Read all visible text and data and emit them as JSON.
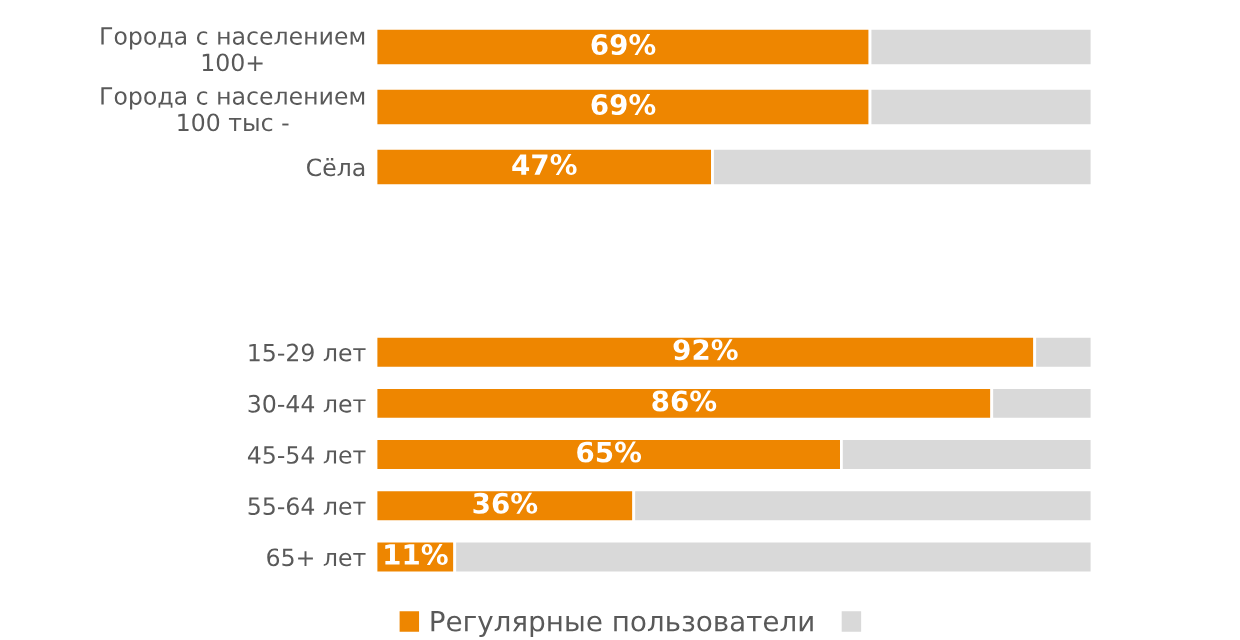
{
  "chart_data": [
    {
      "type": "bar",
      "orientation": "horizontal",
      "stacked": true,
      "categories": [
        "Города с населением\n100+",
        "Города с населением\n100 тыс -",
        "Сёла"
      ],
      "xlim": [
        0,
        100
      ],
      "tick_labels": "y",
      "grid": false,
      "legend": false,
      "series": [
        {
          "color": "#ee8600",
          "values": [
            69,
            69,
            47
          ],
          "value_labels": [
            "69%",
            "69%",
            "47%"
          ]
        },
        {
          "color": "#d9d9d9",
          "values": [
            31,
            31,
            53
          ]
        }
      ]
    },
    {
      "type": "bar",
      "orientation": "horizontal",
      "stacked": true,
      "categories": [
        "15-29 лет",
        "30-44 лет",
        "45-54 лет",
        "55-64 лет",
        "65+ лет"
      ],
      "xlim": [
        0,
        100
      ],
      "tick_labels": "y",
      "grid": false,
      "legend": "bottom",
      "series": [
        {
          "name": "Регулярные пользователи",
          "color": "#ee8600",
          "values": [
            92,
            86,
            65,
            36,
            11
          ],
          "value_labels": [
            "92%",
            "86%",
            "65%",
            "36%",
            "11%"
          ]
        },
        {
          "color": "#d9d9d9",
          "values": [
            8,
            14,
            35,
            64,
            89
          ]
        }
      ]
    }
  ]
}
